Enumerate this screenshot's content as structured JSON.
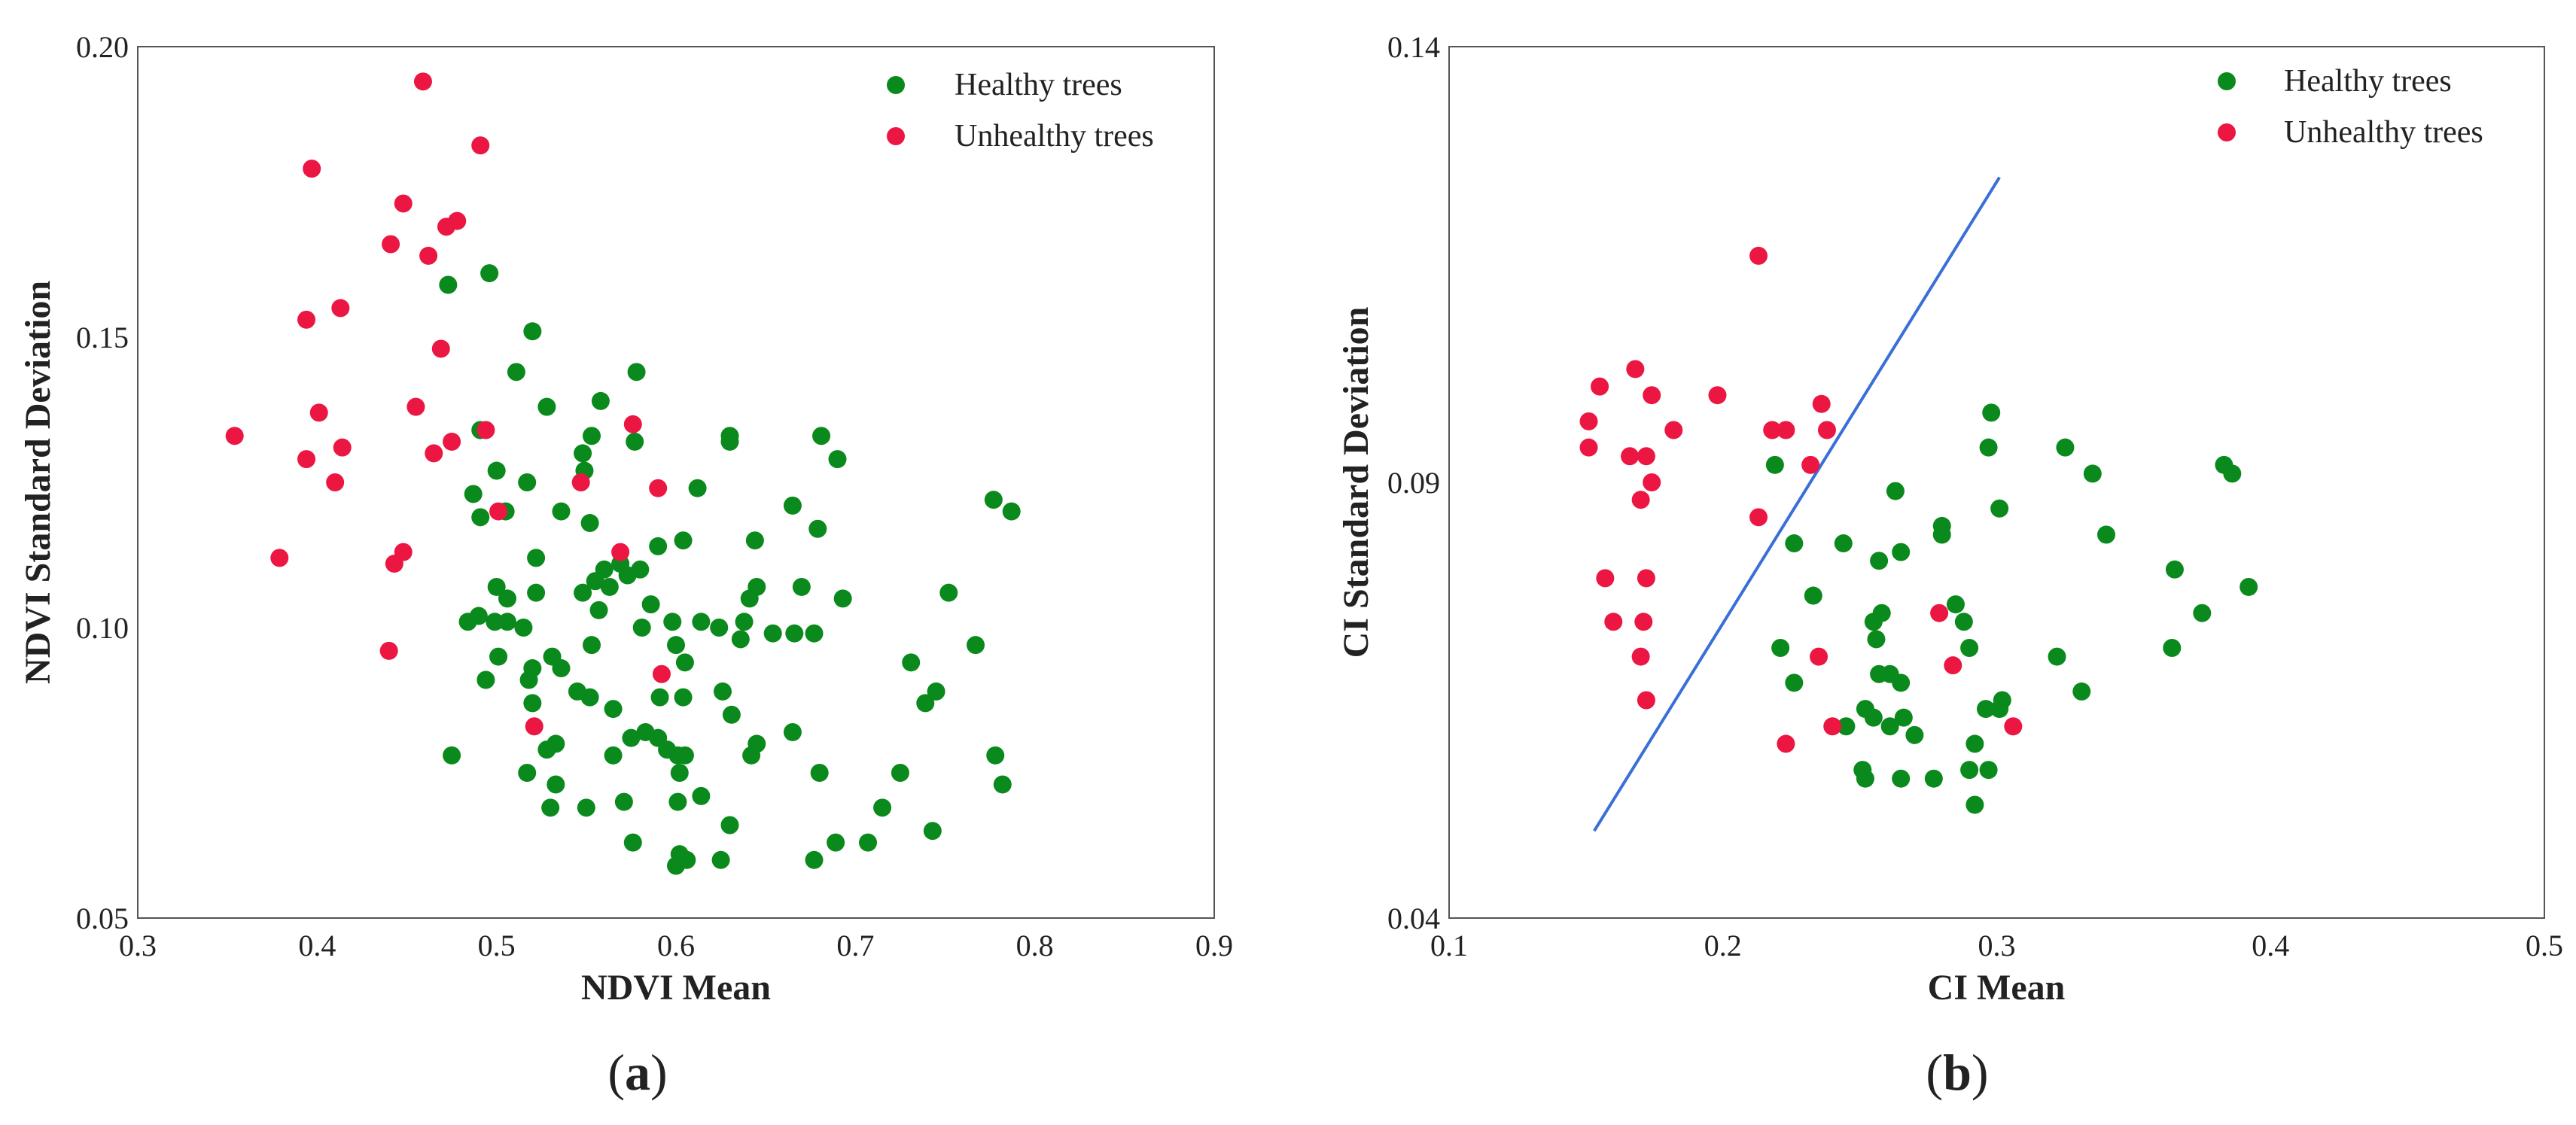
{
  "colors": {
    "healthy": "#0a8a1c",
    "unhealthy": "#ec1642",
    "line": "#3a6fd8"
  },
  "chart_data": [
    {
      "id": "a",
      "type": "scatter",
      "panel_label": "a",
      "xlabel": "NDVI Mean",
      "ylabel": "NDVI Standard Deviation",
      "xlim": [
        0.3,
        0.9
      ],
      "ylim": [
        0.05,
        0.2
      ],
      "xticks": [
        "0.3",
        "0.4",
        "0.5",
        "0.6",
        "0.7",
        "0.8",
        "0.9"
      ],
      "yticks": [
        "0.05",
        "0.10",
        "0.15",
        "0.20"
      ],
      "legend_position": "top-right",
      "series": [
        {
          "name": "Healthy trees",
          "color_key": "healthy",
          "points": [
            [
              0.473,
              0.159
            ],
            [
              0.496,
              0.161
            ],
            [
              0.52,
              0.151
            ],
            [
              0.511,
              0.144
            ],
            [
              0.578,
              0.144
            ],
            [
              0.528,
              0.138
            ],
            [
              0.558,
              0.139
            ],
            [
              0.491,
              0.134
            ],
            [
              0.553,
              0.133
            ],
            [
              0.577,
              0.132
            ],
            [
              0.63,
              0.133
            ],
            [
              0.63,
              0.132
            ],
            [
              0.681,
              0.133
            ],
            [
              0.548,
              0.13
            ],
            [
              0.69,
              0.129
            ],
            [
              0.5,
              0.127
            ],
            [
              0.549,
              0.127
            ],
            [
              0.517,
              0.125
            ],
            [
              0.487,
              0.123
            ],
            [
              0.612,
              0.124
            ],
            [
              0.505,
              0.12
            ],
            [
              0.536,
              0.12
            ],
            [
              0.552,
              0.118
            ],
            [
              0.491,
              0.119
            ],
            [
              0.665,
              0.121
            ],
            [
              0.679,
              0.117
            ],
            [
              0.777,
              0.122
            ],
            [
              0.787,
              0.12
            ],
            [
              0.59,
              0.114
            ],
            [
              0.604,
              0.115
            ],
            [
              0.644,
              0.115
            ],
            [
              0.522,
              0.112
            ],
            [
              0.56,
              0.11
            ],
            [
              0.569,
              0.111
            ],
            [
              0.573,
              0.109
            ],
            [
              0.58,
              0.11
            ],
            [
              0.555,
              0.108
            ],
            [
              0.563,
              0.107
            ],
            [
              0.548,
              0.106
            ],
            [
              0.522,
              0.106
            ],
            [
              0.5,
              0.107
            ],
            [
              0.506,
              0.105
            ],
            [
              0.645,
              0.107
            ],
            [
              0.641,
              0.105
            ],
            [
              0.67,
              0.107
            ],
            [
              0.693,
              0.105
            ],
            [
              0.752,
              0.106
            ],
            [
              0.49,
              0.102
            ],
            [
              0.484,
              0.101
            ],
            [
              0.499,
              0.101
            ],
            [
              0.506,
              0.101
            ],
            [
              0.515,
              0.1
            ],
            [
              0.557,
              0.103
            ],
            [
              0.586,
              0.104
            ],
            [
              0.581,
              0.1
            ],
            [
              0.598,
              0.101
            ],
            [
              0.614,
              0.101
            ],
            [
              0.624,
              0.1
            ],
            [
              0.638,
              0.101
            ],
            [
              0.654,
              0.099
            ],
            [
              0.666,
              0.099
            ],
            [
              0.677,
              0.099
            ],
            [
              0.636,
              0.098
            ],
            [
              0.553,
              0.097
            ],
            [
              0.6,
              0.097
            ],
            [
              0.767,
              0.097
            ],
            [
              0.501,
              0.095
            ],
            [
              0.531,
              0.095
            ],
            [
              0.536,
              0.093
            ],
            [
              0.52,
              0.093
            ],
            [
              0.518,
              0.091
            ],
            [
              0.494,
              0.091
            ],
            [
              0.605,
              0.094
            ],
            [
              0.731,
              0.094
            ],
            [
              0.545,
              0.089
            ],
            [
              0.552,
              0.088
            ],
            [
              0.52,
              0.087
            ],
            [
              0.565,
              0.086
            ],
            [
              0.591,
              0.088
            ],
            [
              0.626,
              0.089
            ],
            [
              0.604,
              0.088
            ],
            [
              0.739,
              0.087
            ],
            [
              0.745,
              0.089
            ],
            [
              0.575,
              0.081
            ],
            [
              0.583,
              0.082
            ],
            [
              0.59,
              0.081
            ],
            [
              0.595,
              0.079
            ],
            [
              0.601,
              0.078
            ],
            [
              0.605,
              0.078
            ],
            [
              0.565,
              0.078
            ],
            [
              0.528,
              0.079
            ],
            [
              0.533,
              0.08
            ],
            [
              0.631,
              0.085
            ],
            [
              0.645,
              0.08
            ],
            [
              0.642,
              0.078
            ],
            [
              0.665,
              0.082
            ],
            [
              0.602,
              0.075
            ],
            [
              0.68,
              0.075
            ],
            [
              0.725,
              0.075
            ],
            [
              0.778,
              0.078
            ],
            [
              0.475,
              0.078
            ],
            [
              0.517,
              0.075
            ],
            [
              0.533,
              0.073
            ],
            [
              0.614,
              0.071
            ],
            [
              0.601,
              0.07
            ],
            [
              0.571,
              0.07
            ],
            [
              0.55,
              0.069
            ],
            [
              0.53,
              0.069
            ],
            [
              0.715,
              0.069
            ],
            [
              0.782,
              0.073
            ],
            [
              0.63,
              0.066
            ],
            [
              0.576,
              0.063
            ],
            [
              0.602,
              0.061
            ],
            [
              0.606,
              0.06
            ],
            [
              0.625,
              0.06
            ],
            [
              0.6,
              0.059
            ],
            [
              0.689,
              0.063
            ],
            [
              0.707,
              0.063
            ],
            [
              0.677,
              0.06
            ],
            [
              0.743,
              0.065
            ]
          ]
        },
        {
          "name": "Unhealthy trees",
          "color_key": "unhealthy",
          "points": [
            [
              0.459,
              0.194
            ],
            [
              0.397,
              0.179
            ],
            [
              0.491,
              0.183
            ],
            [
              0.448,
              0.173
            ],
            [
              0.472,
              0.169
            ],
            [
              0.478,
              0.17
            ],
            [
              0.441,
              0.166
            ],
            [
              0.462,
              0.164
            ],
            [
              0.413,
              0.155
            ],
            [
              0.394,
              0.153
            ],
            [
              0.469,
              0.148
            ],
            [
              0.455,
              0.138
            ],
            [
              0.401,
              0.137
            ],
            [
              0.354,
              0.133
            ],
            [
              0.475,
              0.132
            ],
            [
              0.494,
              0.134
            ],
            [
              0.465,
              0.13
            ],
            [
              0.414,
              0.131
            ],
            [
              0.394,
              0.129
            ],
            [
              0.41,
              0.125
            ],
            [
              0.576,
              0.135
            ],
            [
              0.547,
              0.125
            ],
            [
              0.59,
              0.124
            ],
            [
              0.501,
              0.12
            ],
            [
              0.569,
              0.113
            ],
            [
              0.448,
              0.113
            ],
            [
              0.379,
              0.112
            ],
            [
              0.443,
              0.111
            ],
            [
              0.44,
              0.096
            ],
            [
              0.592,
              0.092
            ],
            [
              0.521,
              0.083
            ]
          ]
        }
      ]
    },
    {
      "id": "b",
      "type": "scatter",
      "panel_label": "b",
      "xlabel": "CI Mean",
      "ylabel": "CI Standard Deviation",
      "xlim": [
        0.1,
        0.5
      ],
      "ylim": [
        0.04,
        0.14
      ],
      "xticks": [
        "0.1",
        "0.2",
        "0.3",
        "0.4",
        "0.5"
      ],
      "yticks": [
        "0.04",
        "0.09",
        "0.14"
      ],
      "legend_position": "top-right",
      "line": {
        "x": [
          0.153,
          0.301
        ],
        "y": [
          0.05,
          0.125
        ]
      },
      "series": [
        {
          "name": "Healthy trees",
          "color_key": "healthy",
          "points": [
            [
              0.298,
              0.098
            ],
            [
              0.297,
              0.094
            ],
            [
              0.325,
              0.094
            ],
            [
              0.335,
              0.091
            ],
            [
              0.383,
              0.092
            ],
            [
              0.386,
              0.091
            ],
            [
              0.219,
              0.092
            ],
            [
              0.263,
              0.089
            ],
            [
              0.301,
              0.087
            ],
            [
              0.28,
              0.085
            ],
            [
              0.28,
              0.084
            ],
            [
              0.34,
              0.084
            ],
            [
              0.226,
              0.083
            ],
            [
              0.244,
              0.083
            ],
            [
              0.265,
              0.082
            ],
            [
              0.257,
              0.081
            ],
            [
              0.365,
              0.08
            ],
            [
              0.392,
              0.078
            ],
            [
              0.233,
              0.077
            ],
            [
              0.285,
              0.076
            ],
            [
              0.258,
              0.075
            ],
            [
              0.255,
              0.074
            ],
            [
              0.288,
              0.074
            ],
            [
              0.375,
              0.075
            ],
            [
              0.256,
              0.072
            ],
            [
              0.221,
              0.071
            ],
            [
              0.29,
              0.071
            ],
            [
              0.364,
              0.071
            ],
            [
              0.322,
              0.07
            ],
            [
              0.257,
              0.068
            ],
            [
              0.261,
              0.068
            ],
            [
              0.265,
              0.067
            ],
            [
              0.226,
              0.067
            ],
            [
              0.331,
              0.066
            ],
            [
              0.252,
              0.064
            ],
            [
              0.255,
              0.063
            ],
            [
              0.266,
              0.063
            ],
            [
              0.296,
              0.064
            ],
            [
              0.301,
              0.064
            ],
            [
              0.302,
              0.065
            ],
            [
              0.245,
              0.062
            ],
            [
              0.261,
              0.062
            ],
            [
              0.27,
              0.061
            ],
            [
              0.292,
              0.06
            ],
            [
              0.251,
              0.057
            ],
            [
              0.252,
              0.056
            ],
            [
              0.265,
              0.056
            ],
            [
              0.277,
              0.056
            ],
            [
              0.29,
              0.057
            ],
            [
              0.297,
              0.057
            ],
            [
              0.292,
              0.053
            ]
          ]
        },
        {
          "name": "Unhealthy trees",
          "color_key": "unhealthy",
          "points": [
            [
              0.213,
              0.116
            ],
            [
              0.168,
              0.103
            ],
            [
              0.155,
              0.101
            ],
            [
              0.174,
              0.1
            ],
            [
              0.198,
              0.1
            ],
            [
              0.236,
              0.099
            ],
            [
              0.151,
              0.097
            ],
            [
              0.182,
              0.096
            ],
            [
              0.218,
              0.096
            ],
            [
              0.223,
              0.096
            ],
            [
              0.238,
              0.096
            ],
            [
              0.151,
              0.094
            ],
            [
              0.166,
              0.093
            ],
            [
              0.172,
              0.093
            ],
            [
              0.232,
              0.092
            ],
            [
              0.174,
              0.09
            ],
            [
              0.17,
              0.088
            ],
            [
              0.213,
              0.086
            ],
            [
              0.157,
              0.079
            ],
            [
              0.172,
              0.079
            ],
            [
              0.16,
              0.074
            ],
            [
              0.171,
              0.074
            ],
            [
              0.279,
              0.075
            ],
            [
              0.17,
              0.07
            ],
            [
              0.235,
              0.07
            ],
            [
              0.284,
              0.069
            ],
            [
              0.172,
              0.065
            ],
            [
              0.24,
              0.062
            ],
            [
              0.306,
              0.062
            ],
            [
              0.223,
              0.06
            ]
          ]
        }
      ]
    }
  ]
}
